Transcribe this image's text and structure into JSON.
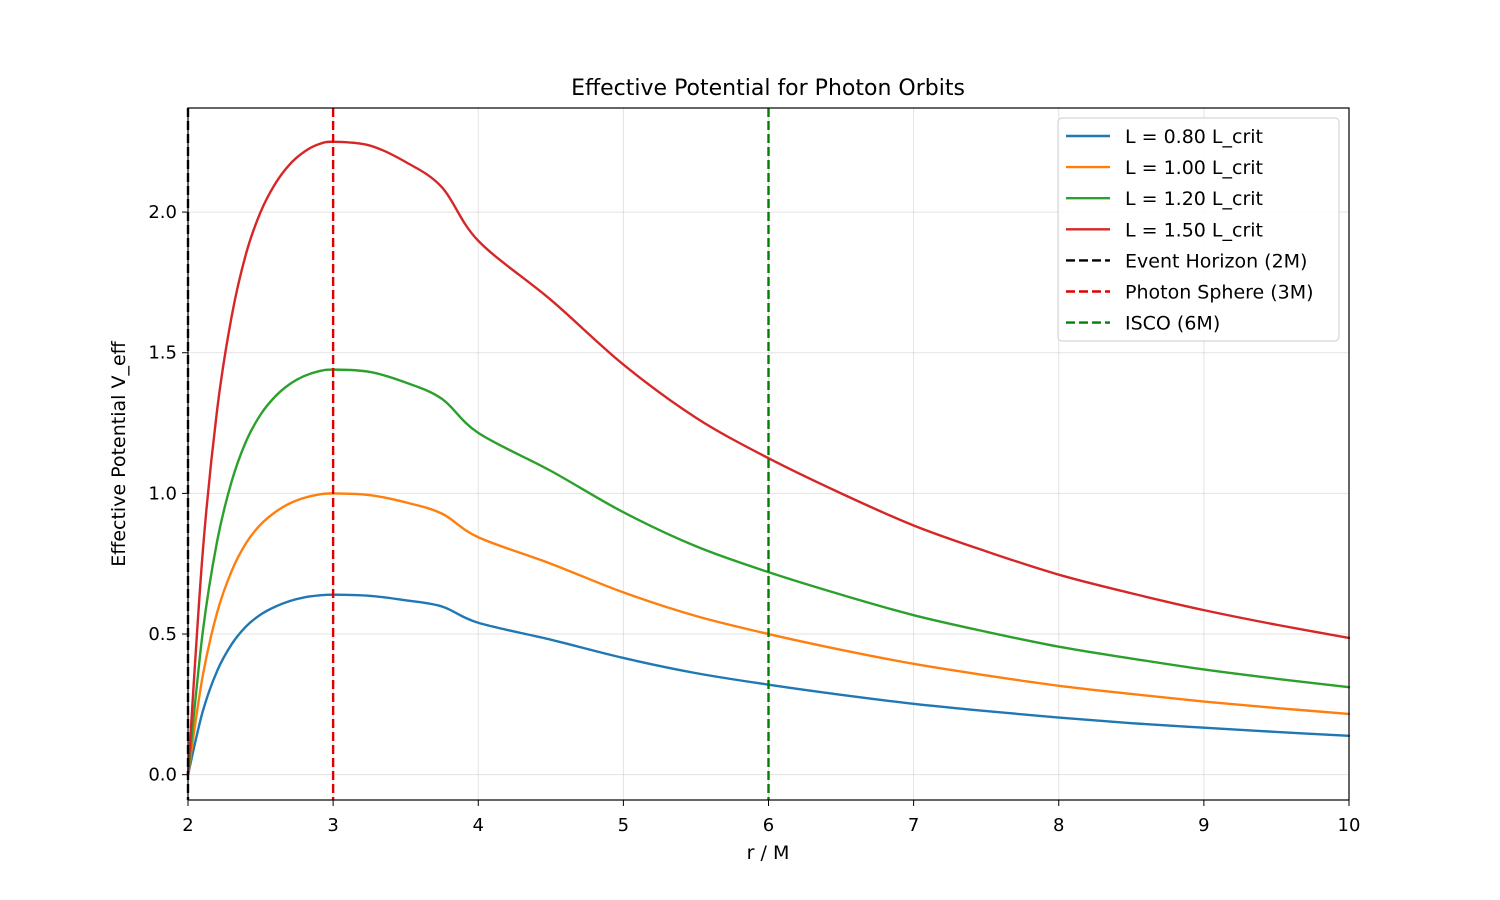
{
  "chart_data": {
    "type": "line",
    "title": "Effective Potential for Photon Orbits",
    "xlabel": "r / M",
    "ylabel": "Effective Potential V_eff",
    "xlim": [
      2,
      10
    ],
    "ylim": [
      -0.09,
      2.37
    ],
    "x_ticks": [
      "2",
      "3",
      "4",
      "5",
      "6",
      "7",
      "8",
      "9",
      "10"
    ],
    "y_ticks": [
      "0.0",
      "0.5",
      "1.0",
      "1.5",
      "2.0"
    ],
    "grid": true,
    "legend_position": "top-right",
    "series": [
      {
        "name": "L = 0.80 L_crit",
        "color": "#1f77b4",
        "x": [
          2.0,
          2.1,
          2.2,
          2.3,
          2.4,
          2.5,
          2.6,
          2.7,
          2.8,
          2.9,
          3.0,
          3.25,
          3.5,
          3.75,
          4.0,
          4.5,
          5.0,
          5.5,
          6.0,
          6.5,
          7.0,
          7.5,
          8.0,
          8.5,
          9.0,
          9.5,
          10.0
        ],
        "y": [
          0.0,
          0.222,
          0.368,
          0.463,
          0.527,
          0.569,
          0.597,
          0.617,
          0.63,
          0.637,
          0.64,
          0.636,
          0.62,
          0.598,
          0.54,
          0.48,
          0.415,
          0.361,
          0.32,
          0.284,
          0.252,
          0.226,
          0.203,
          0.183,
          0.167,
          0.152,
          0.138
        ]
      },
      {
        "name": "L = 1.00 L_crit",
        "color": "#ff7f0e",
        "x": [
          2.0,
          2.1,
          2.2,
          2.3,
          2.4,
          2.5,
          2.6,
          2.7,
          2.8,
          2.9,
          3.0,
          3.25,
          3.5,
          3.75,
          4.0,
          4.5,
          5.0,
          5.5,
          6.0,
          6.5,
          7.0,
          7.5,
          8.0,
          8.5,
          9.0,
          9.5,
          10.0
        ],
        "y": [
          0.0,
          0.347,
          0.575,
          0.723,
          0.823,
          0.889,
          0.933,
          0.964,
          0.984,
          0.996,
          1.0,
          0.994,
          0.968,
          0.928,
          0.844,
          0.75,
          0.648,
          0.564,
          0.5,
          0.444,
          0.394,
          0.353,
          0.316,
          0.287,
          0.26,
          0.237,
          0.216
        ]
      },
      {
        "name": "L = 1.20 L_crit",
        "color": "#2ca02c",
        "x": [
          2.0,
          2.1,
          2.2,
          2.3,
          2.4,
          2.5,
          2.6,
          2.7,
          2.8,
          2.9,
          3.0,
          3.25,
          3.5,
          3.75,
          4.0,
          4.5,
          5.0,
          5.5,
          6.0,
          6.5,
          7.0,
          7.5,
          8.0,
          8.5,
          9.0,
          9.5,
          10.0
        ],
        "y": [
          0.0,
          0.5,
          0.828,
          1.041,
          1.185,
          1.28,
          1.344,
          1.388,
          1.417,
          1.434,
          1.44,
          1.432,
          1.394,
          1.336,
          1.215,
          1.08,
          0.933,
          0.812,
          0.72,
          0.64,
          0.567,
          0.508,
          0.455,
          0.413,
          0.374,
          0.341,
          0.311
        ]
      },
      {
        "name": "L = 1.50 L_crit",
        "color": "#d62728",
        "x": [
          2.0,
          2.1,
          2.2,
          2.3,
          2.4,
          2.5,
          2.6,
          2.7,
          2.8,
          2.9,
          3.0,
          3.25,
          3.5,
          3.75,
          4.0,
          4.5,
          5.0,
          5.5,
          6.0,
          6.5,
          7.0,
          7.5,
          8.0,
          8.5,
          9.0,
          9.5,
          10.0
        ],
        "y": [
          0.0,
          0.781,
          1.294,
          1.627,
          1.852,
          2.0,
          2.1,
          2.169,
          2.214,
          2.241,
          2.25,
          2.237,
          2.178,
          2.088,
          1.898,
          1.688,
          1.458,
          1.269,
          1.125,
          1.0,
          0.886,
          0.794,
          0.711,
          0.645,
          0.585,
          0.533,
          0.486
        ]
      }
    ],
    "reference_lines": [
      {
        "name": "Event Horizon (2M)",
        "x": 2,
        "color": "#000000"
      },
      {
        "name": "Photon Sphere (3M)",
        "x": 3,
        "color": "#e00000"
      },
      {
        "name": "ISCO (6M)",
        "x": 6,
        "color": "#008000"
      }
    ]
  }
}
